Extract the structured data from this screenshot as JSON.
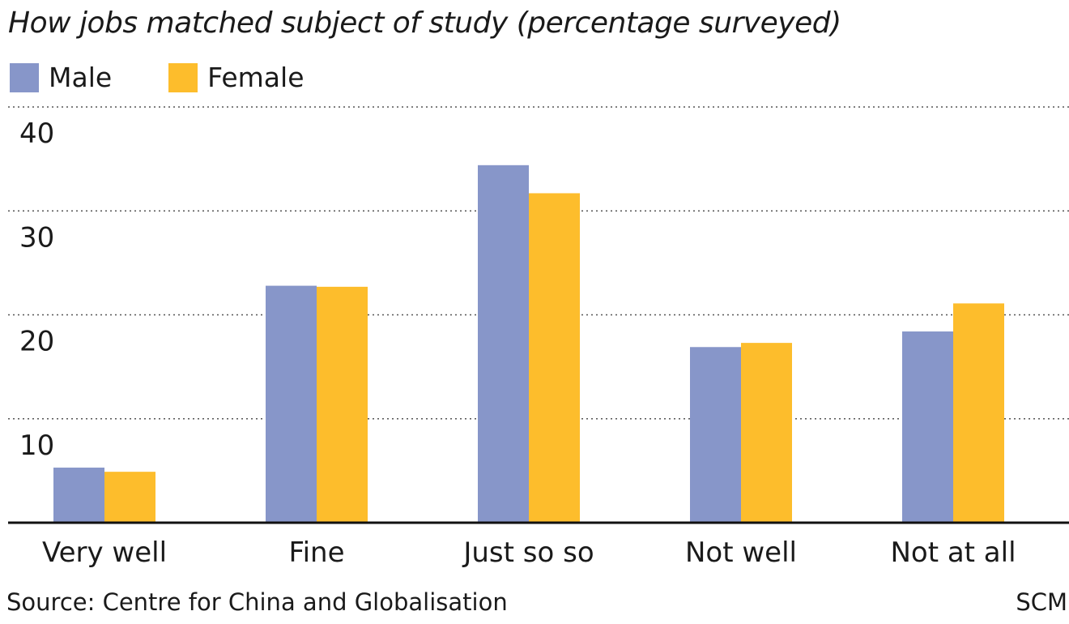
{
  "chart_data": {
    "type": "bar",
    "title": "How jobs matched subject of study (percentage surveyed)",
    "categories": [
      "Very well",
      "Fine",
      "Just so so",
      "Not well",
      "Not at all"
    ],
    "series": [
      {
        "name": "Male",
        "color": "#8796c9",
        "values": [
          5.3,
          22.8,
          34.4,
          16.9,
          18.4
        ]
      },
      {
        "name": "Female",
        "color": "#fdbd2c",
        "values": [
          4.9,
          22.7,
          31.7,
          17.3,
          21.1
        ]
      }
    ],
    "yticks": [
      10,
      20,
      30,
      40
    ],
    "ylim": [
      0,
      40
    ],
    "xlabel": "",
    "ylabel": "",
    "grid": true,
    "legend_position": "top-left"
  },
  "footer": {
    "source": "Source: Centre for China and Globalisation",
    "credit": "SCM"
  }
}
